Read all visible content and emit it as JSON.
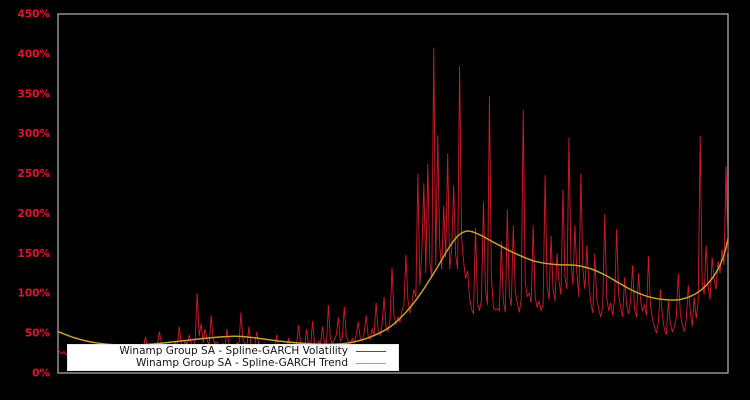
{
  "chart_data": {
    "type": "line",
    "title": "",
    "xlabel": "",
    "ylabel": "",
    "ylim": [
      0,
      450
    ],
    "y_ticks": [
      "0%",
      "50%",
      "100%",
      "150%",
      "200%",
      "250%",
      "300%",
      "350%",
      "400%",
      "450%"
    ],
    "y_tick_step": 50,
    "x_tick_labels": [],
    "grid": false,
    "legend_position": "lower-left-inside",
    "background_color": "#000000",
    "plot_border_color": "#b3b3b3",
    "tick_label_color": "#e8112d",
    "series": [
      {
        "name": "Winamp Group SA - Spline-GARCH Volatility",
        "color": "#d2192b",
        "style": "spiky",
        "values": [
          30,
          26,
          24,
          27,
          23,
          25,
          28,
          24,
          22,
          26,
          31,
          27,
          24,
          28,
          25,
          23,
          27,
          30,
          25,
          28,
          33,
          26,
          24,
          29,
          27,
          25,
          31,
          28,
          26,
          30,
          27,
          24,
          28,
          32,
          29,
          26,
          28,
          31,
          27,
          30,
          34,
          29,
          27,
          32,
          45,
          31,
          28,
          33,
          30,
          28,
          35,
          52,
          38,
          30,
          27,
          32,
          33,
          36,
          31,
          38,
          34,
          58,
          36,
          32,
          40,
          35,
          48,
          37,
          33,
          42,
          100,
          46,
          62,
          38,
          55,
          41,
          35,
          72,
          44,
          36,
          39,
          34,
          30,
          37,
          33,
          55,
          36,
          31,
          35,
          32,
          38,
          34,
          76,
          42,
          36,
          33,
          58,
          37,
          32,
          36,
          52,
          35,
          31,
          34,
          30,
          33,
          29,
          33,
          28,
          31,
          48,
          32,
          28,
          34,
          30,
          27,
          44,
          31,
          28,
          33,
          36,
          60,
          38,
          32,
          29,
          55,
          35,
          30,
          65,
          38,
          33,
          40,
          35,
          58,
          39,
          34,
          85,
          44,
          37,
          42,
          48,
          70,
          40,
          44,
          83,
          46,
          40,
          36,
          43,
          38,
          47,
          64,
          44,
          40,
          50,
          72,
          46,
          42,
          55,
          48,
          88,
          52,
          47,
          60,
          95,
          58,
          52,
          66,
          132,
          72,
          62,
          70,
          64,
          78,
          85,
          148,
          92,
          75,
          88,
          105,
          95,
          250,
          110,
          150,
          238,
          125,
          262,
          140,
          120,
          408,
          135,
          298,
          160,
          130,
          210,
          145,
          275,
          130,
          155,
          235,
          148,
          130,
          385,
          170,
          140,
          118,
          128,
          95,
          80,
          74,
          182,
          88,
          78,
          92,
          215,
          105,
          85,
          347,
          120,
          82,
          79,
          81,
          78,
          165,
          90,
          76,
          205,
          98,
          84,
          185,
          102,
          88,
          76,
          92,
          330,
          115,
          96,
          100,
          88,
          185,
          95,
          82,
          90,
          78,
          85,
          248,
          110,
          92,
          172,
          105,
          90,
          150,
          115,
          98,
          230,
          120,
          105,
          295,
          140,
          110,
          185,
          125,
          95,
          250,
          130,
          105,
          160,
          112,
          88,
          75,
          150,
          92,
          80,
          70,
          85,
          199,
          95,
          78,
          88,
          72,
          95,
          180,
          98,
          82,
          70,
          120,
          85,
          74,
          90,
          135,
          80,
          70,
          125,
          92,
          78,
          85,
          72,
          146,
          85,
          68,
          58,
          50,
          64,
          105,
          72,
          55,
          48,
          90,
          62,
          52,
          58,
          70,
          125,
          75,
          60,
          52,
          66,
          110,
          78,
          58,
          95,
          68,
          90,
          297,
          115,
          98,
          160,
          108,
          92,
          145,
          118,
          105,
          140,
          125,
          155,
          135,
          259,
          150
        ]
      },
      {
        "name": "Winamp Group SA - Spline-GARCH Trend",
        "color": "#c9a02c",
        "style": "smooth",
        "points": [
          [
            0,
            52
          ],
          [
            0.025,
            44
          ],
          [
            0.055,
            38
          ],
          [
            0.093,
            35
          ],
          [
            0.137,
            36
          ],
          [
            0.182,
            40
          ],
          [
            0.227,
            44
          ],
          [
            0.264,
            46
          ],
          [
            0.294,
            44
          ],
          [
            0.331,
            40
          ],
          [
            0.369,
            37
          ],
          [
            0.406,
            36
          ],
          [
            0.436,
            38
          ],
          [
            0.466,
            45
          ],
          [
            0.496,
            58
          ],
          [
            0.518,
            75
          ],
          [
            0.54,
            98
          ],
          [
            0.563,
            128
          ],
          [
            0.582,
            155
          ],
          [
            0.597,
            172
          ],
          [
            0.612,
            178
          ],
          [
            0.63,
            173
          ],
          [
            0.652,
            163
          ],
          [
            0.682,
            150
          ],
          [
            0.712,
            140
          ],
          [
            0.742,
            136
          ],
          [
            0.772,
            135
          ],
          [
            0.794,
            131
          ],
          [
            0.816,
            123
          ],
          [
            0.839,
            112
          ],
          [
            0.861,
            102
          ],
          [
            0.884,
            95
          ],
          [
            0.906,
            92
          ],
          [
            0.928,
            92
          ],
          [
            0.951,
            99
          ],
          [
            0.97,
            112
          ],
          [
            0.985,
            130
          ],
          [
            0.994,
            148
          ],
          [
            1,
            168
          ]
        ]
      }
    ]
  }
}
